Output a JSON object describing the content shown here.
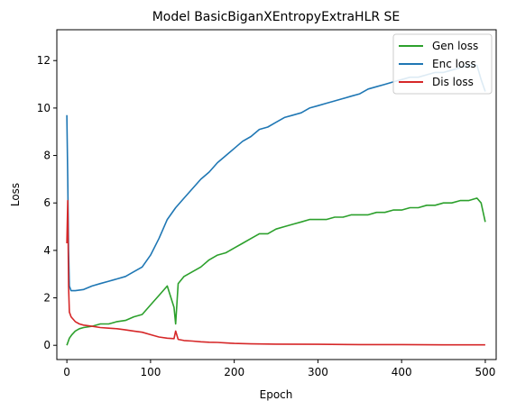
{
  "chart_data": {
    "type": "line",
    "title": "Model BasicBiganXEntropyExtraHLR SE",
    "xlabel": "Epoch",
    "ylabel": "Loss",
    "xlim": [
      -12,
      513
    ],
    "ylim": [
      -0.6,
      13.3
    ],
    "xticks": [
      0,
      100,
      200,
      300,
      400,
      500
    ],
    "yticks": [
      0,
      2,
      4,
      6,
      8,
      10,
      12
    ],
    "grid": false,
    "legend_position": "top-right",
    "series": [
      {
        "name": "Gen loss",
        "color": "#2ca02c",
        "points": [
          [
            0,
            0.0
          ],
          [
            3,
            0.3
          ],
          [
            6,
            0.45
          ],
          [
            10,
            0.6
          ],
          [
            15,
            0.7
          ],
          [
            20,
            0.75
          ],
          [
            30,
            0.8
          ],
          [
            40,
            0.9
          ],
          [
            50,
            0.9
          ],
          [
            60,
            1.0
          ],
          [
            70,
            1.05
          ],
          [
            80,
            1.2
          ],
          [
            90,
            1.3
          ],
          [
            100,
            1.7
          ],
          [
            110,
            2.1
          ],
          [
            120,
            2.5
          ],
          [
            128,
            1.6
          ],
          [
            130,
            0.9
          ],
          [
            133,
            2.6
          ],
          [
            140,
            2.9
          ],
          [
            150,
            3.1
          ],
          [
            160,
            3.3
          ],
          [
            170,
            3.6
          ],
          [
            180,
            3.8
          ],
          [
            190,
            3.9
          ],
          [
            200,
            4.1
          ],
          [
            210,
            4.3
          ],
          [
            220,
            4.5
          ],
          [
            230,
            4.7
          ],
          [
            240,
            4.7
          ],
          [
            250,
            4.9
          ],
          [
            260,
            5.0
          ],
          [
            270,
            5.1
          ],
          [
            280,
            5.2
          ],
          [
            290,
            5.3
          ],
          [
            300,
            5.3
          ],
          [
            310,
            5.3
          ],
          [
            320,
            5.4
          ],
          [
            330,
            5.4
          ],
          [
            340,
            5.5
          ],
          [
            350,
            5.5
          ],
          [
            360,
            5.5
          ],
          [
            370,
            5.6
          ],
          [
            380,
            5.6
          ],
          [
            390,
            5.7
          ],
          [
            400,
            5.7
          ],
          [
            410,
            5.8
          ],
          [
            420,
            5.8
          ],
          [
            430,
            5.9
          ],
          [
            440,
            5.9
          ],
          [
            450,
            6.0
          ],
          [
            460,
            6.0
          ],
          [
            470,
            6.1
          ],
          [
            480,
            6.1
          ],
          [
            490,
            6.2
          ],
          [
            495,
            6.0
          ],
          [
            500,
            5.2
          ]
        ]
      },
      {
        "name": "Enc loss",
        "color": "#1f77b4",
        "points": [
          [
            0,
            9.7
          ],
          [
            1,
            7.0
          ],
          [
            2,
            4.0
          ],
          [
            3,
            2.5
          ],
          [
            5,
            2.3
          ],
          [
            10,
            2.3
          ],
          [
            20,
            2.35
          ],
          [
            30,
            2.5
          ],
          [
            40,
            2.6
          ],
          [
            50,
            2.7
          ],
          [
            60,
            2.8
          ],
          [
            70,
            2.9
          ],
          [
            80,
            3.1
          ],
          [
            90,
            3.3
          ],
          [
            100,
            3.8
          ],
          [
            110,
            4.5
          ],
          [
            120,
            5.3
          ],
          [
            130,
            5.8
          ],
          [
            140,
            6.2
          ],
          [
            150,
            6.6
          ],
          [
            160,
            7.0
          ],
          [
            170,
            7.3
          ],
          [
            180,
            7.7
          ],
          [
            190,
            8.0
          ],
          [
            200,
            8.3
          ],
          [
            210,
            8.6
          ],
          [
            220,
            8.8
          ],
          [
            230,
            9.1
          ],
          [
            240,
            9.2
          ],
          [
            250,
            9.4
          ],
          [
            260,
            9.6
          ],
          [
            270,
            9.7
          ],
          [
            280,
            9.8
          ],
          [
            290,
            10.0
          ],
          [
            300,
            10.1
          ],
          [
            310,
            10.2
          ],
          [
            320,
            10.3
          ],
          [
            330,
            10.4
          ],
          [
            340,
            10.5
          ],
          [
            350,
            10.6
          ],
          [
            360,
            10.8
          ],
          [
            370,
            10.9
          ],
          [
            380,
            11.0
          ],
          [
            390,
            11.1
          ],
          [
            400,
            11.2
          ],
          [
            410,
            11.3
          ],
          [
            420,
            11.3
          ],
          [
            430,
            11.4
          ],
          [
            440,
            11.5
          ],
          [
            450,
            11.5
          ],
          [
            460,
            11.6
          ],
          [
            470,
            11.7
          ],
          [
            480,
            11.8
          ],
          [
            490,
            11.8
          ],
          [
            495,
            11.2
          ],
          [
            500,
            10.7
          ]
        ]
      },
      {
        "name": "Dis loss",
        "color": "#d62728",
        "points": [
          [
            0,
            4.3
          ],
          [
            1,
            6.1
          ],
          [
            2,
            2.5
          ],
          [
            3,
            1.4
          ],
          [
            5,
            1.2
          ],
          [
            10,
            1.0
          ],
          [
            15,
            0.9
          ],
          [
            20,
            0.85
          ],
          [
            30,
            0.8
          ],
          [
            40,
            0.75
          ],
          [
            50,
            0.72
          ],
          [
            60,
            0.7
          ],
          [
            70,
            0.65
          ],
          [
            80,
            0.6
          ],
          [
            90,
            0.55
          ],
          [
            100,
            0.45
          ],
          [
            110,
            0.35
          ],
          [
            120,
            0.3
          ],
          [
            128,
            0.28
          ],
          [
            130,
            0.6
          ],
          [
            133,
            0.25
          ],
          [
            140,
            0.2
          ],
          [
            150,
            0.18
          ],
          [
            160,
            0.15
          ],
          [
            170,
            0.13
          ],
          [
            180,
            0.12
          ],
          [
            190,
            0.1
          ],
          [
            200,
            0.08
          ],
          [
            220,
            0.06
          ],
          [
            250,
            0.05
          ],
          [
            300,
            0.04
          ],
          [
            350,
            0.03
          ],
          [
            400,
            0.03
          ],
          [
            450,
            0.02
          ],
          [
            500,
            0.02
          ]
        ]
      }
    ]
  }
}
